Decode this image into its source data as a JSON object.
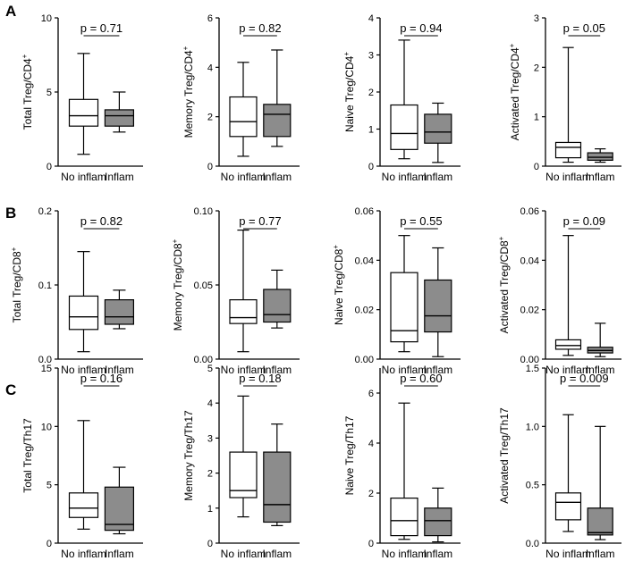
{
  "figure": {
    "panel_labels": [
      "A",
      "B",
      "C"
    ],
    "fills": {
      "no_inflam": "#ffffff",
      "inflam": "#8c8c8c"
    }
  },
  "chart_data": [
    {
      "type": "boxplot",
      "row": "A",
      "ylabel": "Total Treg/CD4",
      "ylabel_sup": "+",
      "ylim": [
        0,
        10
      ],
      "yticks": [
        "0",
        "5",
        "10"
      ],
      "ytick_values": [
        0,
        5,
        10
      ],
      "categories": [
        "No inflam",
        "Inflam"
      ],
      "p_value": "p = 0.71",
      "series": [
        {
          "category": "No inflam",
          "min": 0.8,
          "q1": 2.7,
          "median": 3.4,
          "q3": 4.5,
          "max": 7.6
        },
        {
          "category": "Inflam",
          "min": 2.3,
          "q1": 2.7,
          "median": 3.4,
          "q3": 3.8,
          "max": 5.0
        }
      ]
    },
    {
      "type": "boxplot",
      "row": "A",
      "ylabel": "Memory Treg/CD4",
      "ylabel_sup": "+",
      "ylim": [
        0,
        6
      ],
      "yticks": [
        "0",
        "2",
        "4",
        "6"
      ],
      "ytick_values": [
        0,
        2,
        4,
        6
      ],
      "categories": [
        "No inflam",
        "Inflam"
      ],
      "p_value": "p = 0.82",
      "series": [
        {
          "category": "No inflam",
          "min": 0.4,
          "q1": 1.2,
          "median": 1.8,
          "q3": 2.8,
          "max": 4.2
        },
        {
          "category": "Inflam",
          "min": 0.8,
          "q1": 1.2,
          "median": 2.1,
          "q3": 2.5,
          "max": 4.7
        }
      ]
    },
    {
      "type": "boxplot",
      "row": "A",
      "ylabel": "Naive Treg/CD4",
      "ylabel_sup": "+",
      "ylim": [
        0,
        4
      ],
      "yticks": [
        "0",
        "1",
        "2",
        "3",
        "4"
      ],
      "ytick_values": [
        0,
        1,
        2,
        3,
        4
      ],
      "categories": [
        "No inflam",
        "Inflam"
      ],
      "p_value": "p = 0.94",
      "series": [
        {
          "category": "No inflam",
          "min": 0.2,
          "q1": 0.45,
          "median": 0.88,
          "q3": 1.65,
          "max": 3.4
        },
        {
          "category": "Inflam",
          "min": 0.1,
          "q1": 0.62,
          "median": 0.92,
          "q3": 1.4,
          "max": 1.7
        }
      ]
    },
    {
      "type": "boxplot",
      "row": "A",
      "ylabel": "Activated Treg/CD4",
      "ylabel_sup": "+",
      "ylim": [
        0,
        3
      ],
      "yticks": [
        "0",
        "1",
        "2",
        "3"
      ],
      "ytick_values": [
        0,
        1,
        2,
        3
      ],
      "categories": [
        "No inflam",
        "Inflam"
      ],
      "p_value": "p = 0.05",
      "series": [
        {
          "category": "No inflam",
          "min": 0.08,
          "q1": 0.17,
          "median": 0.38,
          "q3": 0.48,
          "max": 2.4
        },
        {
          "category": "Inflam",
          "min": 0.08,
          "q1": 0.12,
          "median": 0.18,
          "q3": 0.27,
          "max": 0.35
        }
      ]
    },
    {
      "type": "boxplot",
      "row": "B",
      "ylabel": "Total Treg/CD8",
      "ylabel_sup": "+",
      "ylim": [
        0,
        0.2
      ],
      "yticks": [
        "0.0",
        "0.1",
        "0.2"
      ],
      "ytick_values": [
        0,
        0.1,
        0.2
      ],
      "categories": [
        "No inflam",
        "Inflam"
      ],
      "p_value": "p = 0.82",
      "series": [
        {
          "category": "No inflam",
          "min": 0.01,
          "q1": 0.04,
          "median": 0.057,
          "q3": 0.085,
          "max": 0.145
        },
        {
          "category": "Inflam",
          "min": 0.041,
          "q1": 0.047,
          "median": 0.057,
          "q3": 0.08,
          "max": 0.093
        }
      ]
    },
    {
      "type": "boxplot",
      "row": "B",
      "ylabel": "Memory Treg/CD8",
      "ylabel_sup": "+",
      "ylim": [
        0,
        0.1
      ],
      "yticks": [
        "0.00",
        "0.05",
        "0.10"
      ],
      "ytick_values": [
        0,
        0.05,
        0.1
      ],
      "categories": [
        "No inflam",
        "Inflam"
      ],
      "p_value": "p = 0.77",
      "series": [
        {
          "category": "No inflam",
          "min": 0.005,
          "q1": 0.024,
          "median": 0.028,
          "q3": 0.04,
          "max": 0.087
        },
        {
          "category": "Inflam",
          "min": 0.021,
          "q1": 0.025,
          "median": 0.03,
          "q3": 0.047,
          "max": 0.06
        }
      ]
    },
    {
      "type": "boxplot",
      "row": "B",
      "ylabel": "Naive Treg/CD8",
      "ylabel_sup": "+",
      "ylim": [
        0,
        0.06
      ],
      "yticks": [
        "0.00",
        "0.02",
        "0.04",
        "0.06"
      ],
      "ytick_values": [
        0,
        0.02,
        0.04,
        0.06
      ],
      "categories": [
        "No inflam",
        "Inflam"
      ],
      "p_value": "p = 0.55",
      "series": [
        {
          "category": "No inflam",
          "min": 0.003,
          "q1": 0.007,
          "median": 0.0115,
          "q3": 0.035,
          "max": 0.05
        },
        {
          "category": "Inflam",
          "min": 0.001,
          "q1": 0.011,
          "median": 0.0175,
          "q3": 0.032,
          "max": 0.045
        }
      ]
    },
    {
      "type": "boxplot",
      "row": "B",
      "ylabel": "Activated Treg/CD8",
      "ylabel_sup": "+",
      "ylim": [
        0,
        0.06
      ],
      "yticks": [
        "0.00",
        "0.02",
        "0.04",
        "0.06"
      ],
      "ytick_values": [
        0,
        0.02,
        0.04,
        0.06
      ],
      "categories": [
        "No inflam",
        "Inflam"
      ],
      "p_value": "p = 0.09",
      "series": [
        {
          "category": "No inflam",
          "min": 0.0015,
          "q1": 0.004,
          "median": 0.0055,
          "q3": 0.0078,
          "max": 0.05
        },
        {
          "category": "Inflam",
          "min": 0.001,
          "q1": 0.0025,
          "median": 0.0035,
          "q3": 0.0048,
          "max": 0.0145
        }
      ]
    },
    {
      "type": "boxplot",
      "row": "C",
      "ylabel": "Total Treg/Th17",
      "ylabel_sup": "",
      "ylim": [
        0,
        15
      ],
      "yticks": [
        "0",
        "5",
        "10",
        "15"
      ],
      "ytick_values": [
        0,
        5,
        10,
        15
      ],
      "categories": [
        "No inflam",
        "Inflam"
      ],
      "p_value": "p = 0.16",
      "series": [
        {
          "category": "No inflam",
          "min": 1.2,
          "q1": 2.2,
          "median": 3.0,
          "q3": 4.3,
          "max": 10.5
        },
        {
          "category": "Inflam",
          "min": 0.8,
          "q1": 1.1,
          "median": 1.6,
          "q3": 4.8,
          "max": 6.5
        }
      ]
    },
    {
      "type": "boxplot",
      "row": "C",
      "ylabel": "Memory Treg/Th17",
      "ylabel_sup": "",
      "ylim": [
        0,
        5
      ],
      "yticks": [
        "0",
        "1",
        "2",
        "3",
        "4",
        "5"
      ],
      "ytick_values": [
        0,
        1,
        2,
        3,
        4,
        5
      ],
      "categories": [
        "No inflam",
        "Inflam"
      ],
      "p_value": "p = 0.18",
      "series": [
        {
          "category": "No inflam",
          "min": 0.75,
          "q1": 1.3,
          "median": 1.5,
          "q3": 2.6,
          "max": 4.2
        },
        {
          "category": "Inflam",
          "min": 0.5,
          "q1": 0.6,
          "median": 1.1,
          "q3": 2.6,
          "max": 3.4
        }
      ]
    },
    {
      "type": "boxplot",
      "row": "C",
      "ylabel": "Naive Treg/Th17",
      "ylabel_sup": "",
      "ylim": [
        0,
        7
      ],
      "yticks": [
        "0",
        "2",
        "4",
        "6"
      ],
      "ytick_values": [
        0,
        2,
        4,
        6
      ],
      "categories": [
        "No inflam",
        "Inflam"
      ],
      "p_value": "p = 0.60",
      "series": [
        {
          "category": "No inflam",
          "min": 0.15,
          "q1": 0.3,
          "median": 0.9,
          "q3": 1.8,
          "max": 5.6
        },
        {
          "category": "Inflam",
          "min": 0.05,
          "q1": 0.3,
          "median": 0.9,
          "q3": 1.4,
          "max": 2.2
        }
      ]
    },
    {
      "type": "boxplot",
      "row": "C",
      "ylabel": "Activated Treg/Th17",
      "ylabel_sup": "",
      "ylim": [
        0,
        1.5
      ],
      "yticks": [
        "0.0",
        "0.5",
        "1.0",
        "1.5"
      ],
      "ytick_values": [
        0,
        0.5,
        1.0,
        1.5
      ],
      "categories": [
        "No inflam",
        "Inflam"
      ],
      "p_value": "p = 0.009",
      "series": [
        {
          "category": "No inflam",
          "min": 0.1,
          "q1": 0.2,
          "median": 0.35,
          "q3": 0.43,
          "max": 1.1
        },
        {
          "category": "Inflam",
          "min": 0.03,
          "q1": 0.07,
          "median": 0.09,
          "q3": 0.3,
          "max": 1.0
        }
      ]
    }
  ]
}
